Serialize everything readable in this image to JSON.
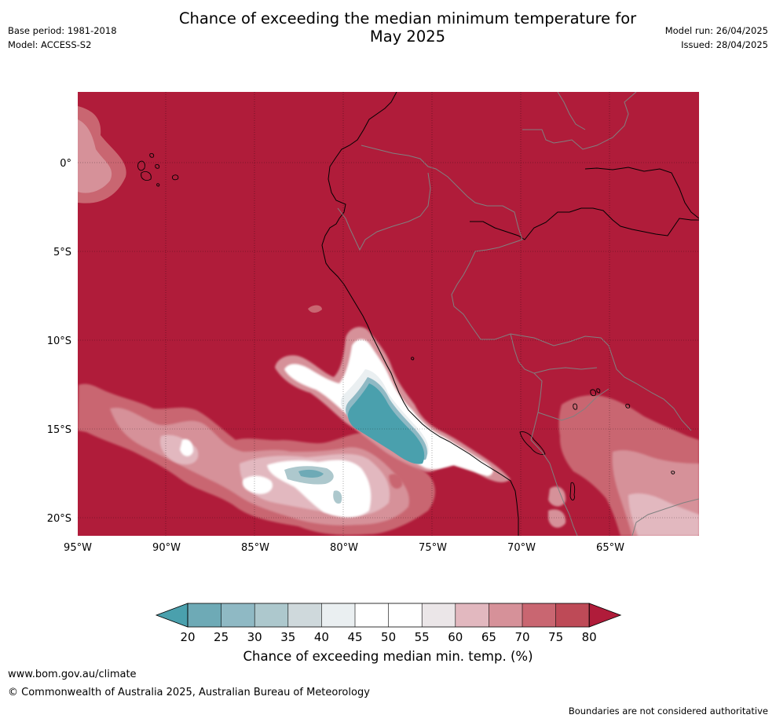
{
  "title_line1": "Chance of exceeding the median minimum temperature for",
  "title_line2": "May 2025",
  "meta": {
    "base_period": "Base period: 1981-2018",
    "model": "Model: ACCESS-S2",
    "model_run": "Model run: 26/04/2025",
    "issued": "Issued: 28/04/2025"
  },
  "map": {
    "lon_labels": [
      "95°W",
      "90°W",
      "85°W",
      "80°W",
      "75°W",
      "70°W",
      "65°W"
    ],
    "lat_labels": [
      "0°",
      "5°S",
      "10°S",
      "15°S",
      "20°S"
    ],
    "lon_values": [
      -95,
      -90,
      -85,
      -80,
      -75,
      -70,
      -65
    ],
    "lat_values": [
      0,
      -5,
      -10,
      -15,
      -20
    ]
  },
  "colorbar": {
    "ticks": [
      "20",
      "25",
      "30",
      "35",
      "40",
      "45",
      "50",
      "55",
      "60",
      "65",
      "70",
      "75",
      "80"
    ],
    "colors": [
      "#4aa0ad",
      "#6eaab6",
      "#8fb9c4",
      "#adc8cd",
      "#cfd9dc",
      "#eaeff1",
      "#ffffff",
      "#ffffff",
      "#ebe6e8",
      "#e2b8bf",
      "#d69199",
      "#c96671",
      "#be4a57",
      "#b01c3a"
    ],
    "label": "Chance of exceeding median min. temp. (%)"
  },
  "footer": {
    "url": "www.bom.gov.au/climate",
    "copyright": "© Commonwealth of Australia 2025, Australian Bureau of Meteorology",
    "note": "Boundaries are not considered authoritative"
  }
}
